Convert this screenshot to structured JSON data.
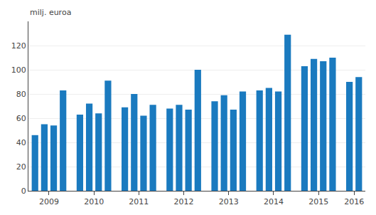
{
  "chart_data": {
    "type": "bar",
    "ylabel": "milj. euroa",
    "categories": [
      "2009",
      null,
      null,
      null,
      "2010",
      null,
      null,
      null,
      "2011",
      null,
      null,
      null,
      "2012",
      null,
      null,
      null,
      "2013",
      null,
      null,
      null,
      "2014",
      null,
      null,
      null,
      "2015",
      null,
      null,
      null,
      "2016",
      null
    ],
    "values": [
      46,
      55,
      54,
      83,
      63,
      72,
      64,
      91,
      69,
      80,
      62,
      71,
      68,
      71,
      67,
      100,
      74,
      79,
      67,
      82,
      83,
      85,
      82,
      129,
      103,
      109,
      107,
      110,
      90,
      94
    ],
    "color": "#1a7abf",
    "ylim": [
      0,
      140
    ],
    "yticks": [
      0,
      20,
      40,
      60,
      80,
      100,
      120
    ],
    "grid": true
  }
}
